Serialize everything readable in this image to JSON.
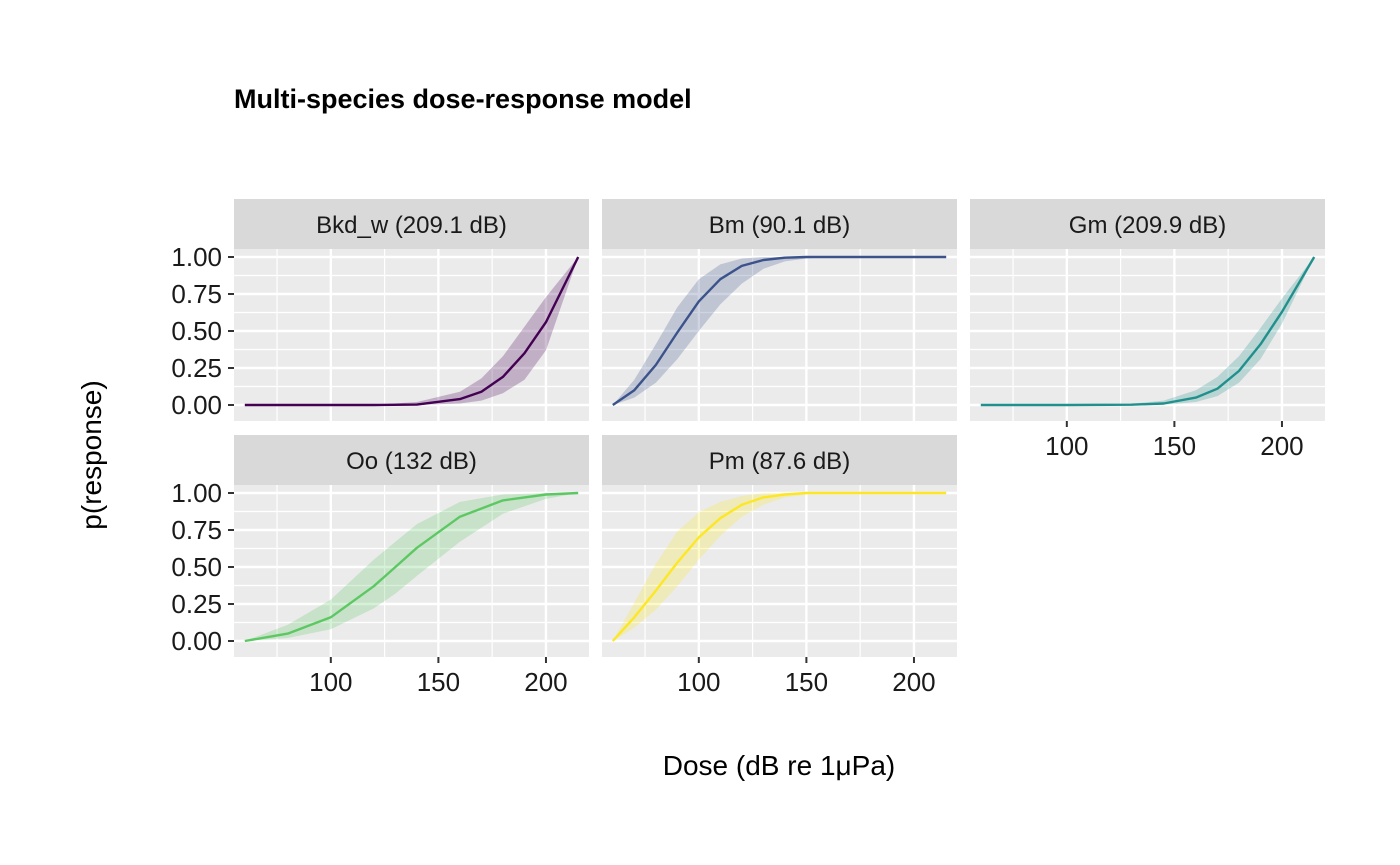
{
  "chart_data": {
    "type": "line",
    "title": "Multi-species dose-response model",
    "xlabel": "Dose (dB re 1μPa)",
    "ylabel": "p(response)",
    "xlim": [
      55,
      220
    ],
    "ylim": [
      0,
      1
    ],
    "x_ticks": [
      100,
      150,
      200
    ],
    "y_ticks": [
      "0.00",
      "0.25",
      "0.50",
      "0.75",
      "1.00"
    ],
    "grid": true,
    "facets": [
      {
        "label": "Bkd_w (209.1 dB)",
        "color": "#440154",
        "x": [
          60,
          80,
          100,
          120,
          140,
          160,
          170,
          180,
          190,
          200,
          215
        ],
        "y": [
          0.0,
          0.0,
          0.0,
          0.0,
          0.003,
          0.04,
          0.09,
          0.19,
          0.35,
          0.56,
          1.0
        ],
        "lower": [
          0.0,
          0.0,
          0.0,
          0.0,
          0.0,
          0.01,
          0.03,
          0.08,
          0.17,
          0.37,
          1.0
        ],
        "upper": [
          0.0,
          0.0,
          0.0,
          0.001,
          0.02,
          0.09,
          0.18,
          0.33,
          0.53,
          0.73,
          1.0
        ]
      },
      {
        "label": "Bm (90.1 dB)",
        "color": "#3B528B",
        "x": [
          60,
          70,
          80,
          90,
          100,
          110,
          120,
          130,
          140,
          150,
          160,
          170,
          215
        ],
        "y": [
          0.0,
          0.1,
          0.27,
          0.49,
          0.7,
          0.85,
          0.94,
          0.98,
          0.995,
          1.0,
          1.0,
          1.0,
          1.0
        ],
        "lower": [
          0.0,
          0.05,
          0.15,
          0.31,
          0.5,
          0.68,
          0.82,
          0.92,
          0.97,
          0.99,
          1.0,
          1.0,
          1.0
        ],
        "upper": [
          0.0,
          0.17,
          0.41,
          0.66,
          0.85,
          0.95,
          0.99,
          1.0,
          1.0,
          1.0,
          1.0,
          1.0,
          1.0
        ]
      },
      {
        "label": "Gm (209.9 dB)",
        "color": "#21908C",
        "x": [
          60,
          100,
          130,
          145,
          160,
          170,
          180,
          190,
          200,
          215
        ],
        "y": [
          0.0,
          0.0,
          0.002,
          0.01,
          0.05,
          0.11,
          0.23,
          0.41,
          0.63,
          1.0
        ],
        "lower": [
          0.0,
          0.0,
          0.0,
          0.002,
          0.02,
          0.06,
          0.15,
          0.31,
          0.55,
          1.0
        ],
        "upper": [
          0.0,
          0.0,
          0.008,
          0.03,
          0.1,
          0.19,
          0.33,
          0.52,
          0.72,
          1.0
        ]
      },
      {
        "label": "Oo (132 dB)",
        "color": "#5DC863",
        "x": [
          60,
          80,
          100,
          120,
          130,
          140,
          160,
          180,
          200,
          215
        ],
        "y": [
          0.0,
          0.05,
          0.16,
          0.37,
          0.5,
          0.63,
          0.84,
          0.95,
          0.99,
          1.0
        ],
        "lower": [
          0.0,
          0.02,
          0.08,
          0.22,
          0.32,
          0.44,
          0.67,
          0.86,
          0.96,
          1.0
        ],
        "upper": [
          0.0,
          0.11,
          0.28,
          0.55,
          0.67,
          0.79,
          0.94,
          0.99,
          1.0,
          1.0
        ]
      },
      {
        "label": "Pm (87.6 dB)",
        "color": "#FDE725",
        "x": [
          60,
          70,
          80,
          90,
          100,
          110,
          120,
          130,
          140,
          150,
          160,
          215
        ],
        "y": [
          0.0,
          0.16,
          0.34,
          0.53,
          0.7,
          0.83,
          0.92,
          0.97,
          0.99,
          1.0,
          1.0,
          1.0
        ],
        "lower": [
          0.0,
          0.09,
          0.21,
          0.37,
          0.55,
          0.71,
          0.84,
          0.92,
          0.97,
          0.99,
          1.0,
          1.0
        ],
        "upper": [
          0.0,
          0.26,
          0.52,
          0.74,
          0.87,
          0.94,
          0.98,
          1.0,
          1.0,
          1.0,
          1.0,
          1.0
        ]
      }
    ]
  }
}
